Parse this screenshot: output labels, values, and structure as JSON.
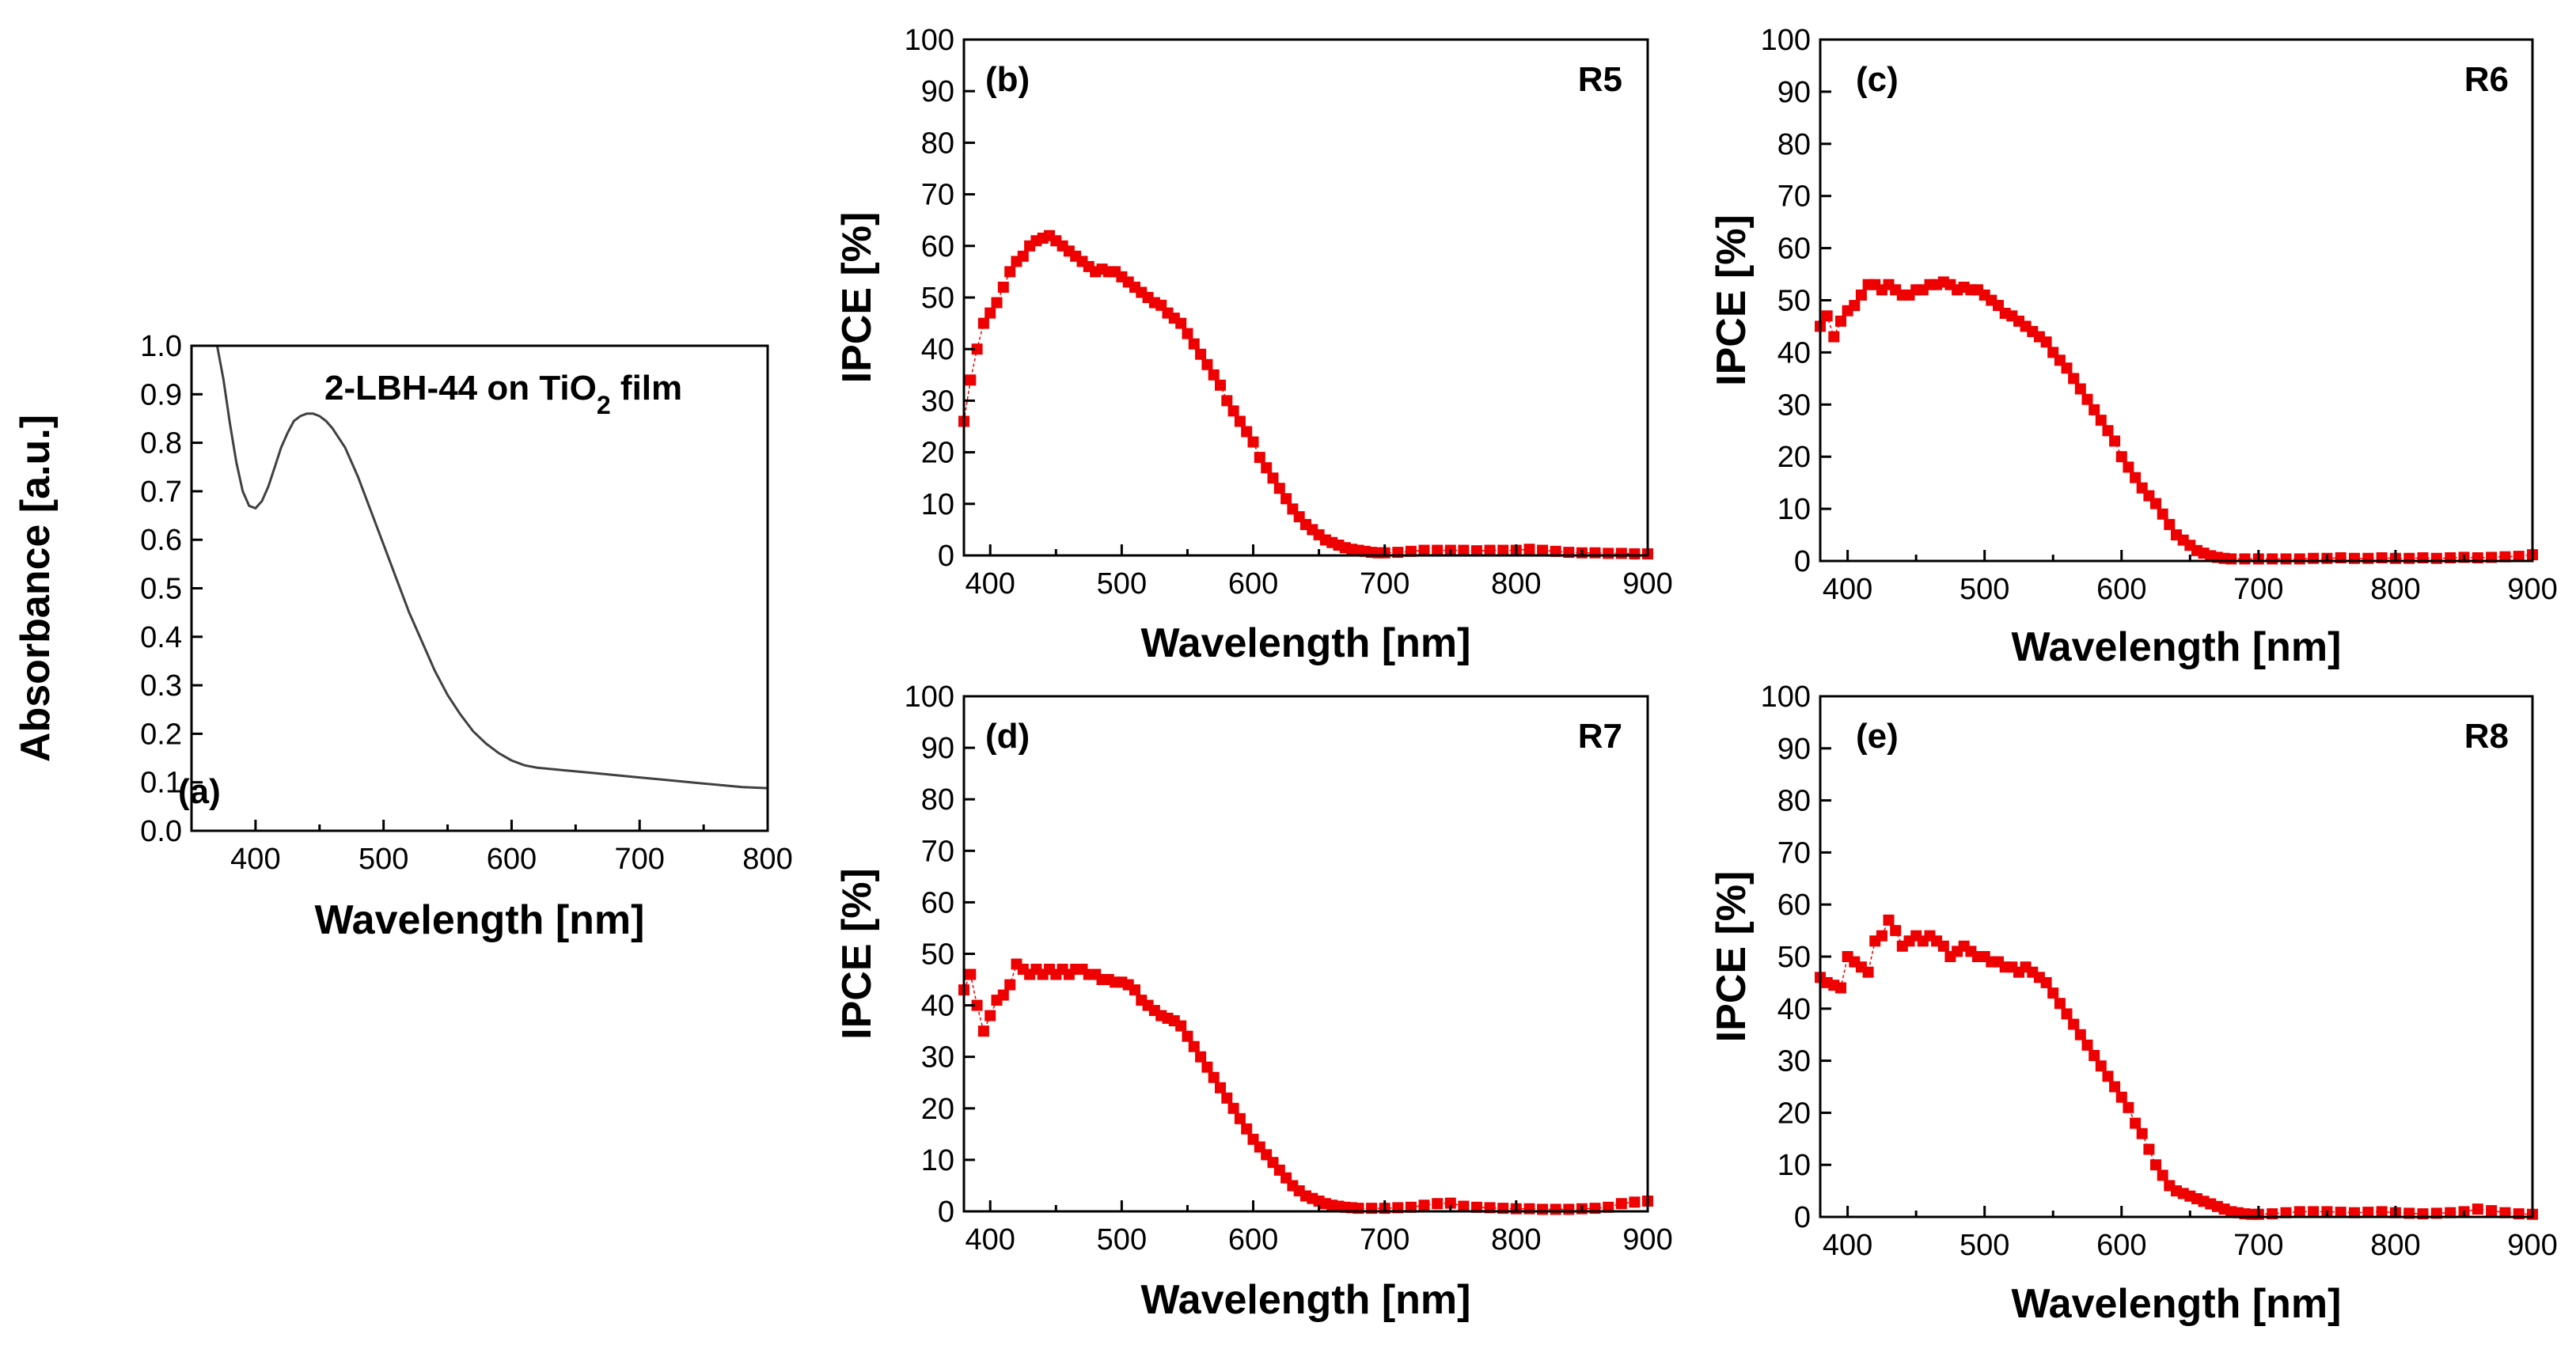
{
  "chart_data": [
    {
      "id": "a",
      "type": "line",
      "panel_label": "(a)",
      "annotation": {
        "prefix": "2-LBH-44 on TiO",
        "subscript": "2",
        "suffix": " film"
      },
      "xlabel": "Wavelength [nm]",
      "ylabel": "Absorbance [a.u.]",
      "xlim": [
        350,
        800
      ],
      "ylim": [
        0,
        1.0
      ],
      "xticks": [
        400,
        500,
        600,
        700,
        800
      ],
      "yticks": [
        0.0,
        0.1,
        0.2,
        0.3,
        0.4,
        0.5,
        0.6,
        0.7,
        0.8,
        0.9,
        1.0
      ],
      "ytick_labels": [
        "0.0",
        "0.1",
        "0.2",
        "0.3",
        "0.4",
        "0.5",
        "0.6",
        "0.7",
        "0.8",
        "0.9",
        "1.0"
      ],
      "color": "#404040",
      "series": [
        {
          "name": "2-LBH-44 on TiO2 film",
          "x": [
            370,
            375,
            380,
            385,
            390,
            395,
            400,
            405,
            410,
            415,
            420,
            425,
            430,
            435,
            440,
            445,
            450,
            455,
            460,
            470,
            480,
            490,
            500,
            510,
            520,
            530,
            540,
            550,
            560,
            570,
            580,
            590,
            600,
            610,
            620,
            640,
            660,
            680,
            700,
            720,
            740,
            760,
            780,
            800
          ],
          "y": [
            1.0,
            0.93,
            0.84,
            0.76,
            0.7,
            0.67,
            0.665,
            0.68,
            0.71,
            0.75,
            0.79,
            0.82,
            0.845,
            0.855,
            0.86,
            0.86,
            0.855,
            0.845,
            0.83,
            0.79,
            0.73,
            0.66,
            0.59,
            0.52,
            0.45,
            0.39,
            0.33,
            0.28,
            0.24,
            0.205,
            0.18,
            0.16,
            0.145,
            0.135,
            0.13,
            0.125,
            0.12,
            0.115,
            0.11,
            0.105,
            0.1,
            0.095,
            0.09,
            0.088
          ]
        }
      ]
    },
    {
      "id": "b",
      "type": "scatter",
      "panel_label": "(b)",
      "name_label": "R5",
      "xlabel": "Wavelength [nm]",
      "ylabel": "IPCE [%]",
      "xlim": [
        380,
        900
      ],
      "ylim": [
        0,
        100
      ],
      "xticks": [
        400,
        500,
        600,
        700,
        800,
        900
      ],
      "yticks": [
        0,
        10,
        20,
        30,
        40,
        50,
        60,
        70,
        80,
        90,
        100
      ],
      "color": "#ee0000",
      "series": [
        {
          "name": "R5",
          "x": [
            380,
            385,
            390,
            395,
            400,
            405,
            410,
            415,
            420,
            425,
            430,
            435,
            440,
            445,
            450,
            455,
            460,
            465,
            470,
            475,
            480,
            485,
            490,
            495,
            500,
            505,
            510,
            515,
            520,
            525,
            530,
            535,
            540,
            545,
            550,
            555,
            560,
            565,
            570,
            575,
            580,
            585,
            590,
            595,
            600,
            605,
            610,
            615,
            620,
            625,
            630,
            635,
            640,
            645,
            650,
            655,
            660,
            665,
            670,
            675,
            680,
            685,
            690,
            695,
            700,
            710,
            720,
            730,
            740,
            750,
            760,
            770,
            780,
            790,
            800,
            810,
            820,
            830,
            840,
            850,
            860,
            870,
            880,
            890,
            900
          ],
          "y": [
            26,
            34,
            40,
            45,
            47,
            49,
            52,
            55,
            57,
            58,
            60,
            61,
            61.5,
            62,
            61,
            60,
            59,
            58,
            57,
            56,
            55,
            55.5,
            55,
            55,
            54,
            53,
            52,
            51,
            50,
            49,
            48.5,
            47,
            46,
            45,
            43,
            41,
            39,
            37,
            35,
            33,
            30,
            28,
            26,
            24,
            22,
            19,
            17,
            15,
            13,
            11,
            9,
            7.5,
            6,
            5,
            4,
            3,
            2.5,
            2,
            1.5,
            1.2,
            1,
            0.8,
            0.6,
            0.5,
            0.5,
            0.6,
            0.8,
            1,
            1,
            1,
            1,
            0.9,
            1,
            1,
            1,
            1.2,
            1,
            0.8,
            0.6,
            0.5,
            0.5,
            0.4,
            0.4,
            0.3,
            0.3
          ]
        }
      ]
    },
    {
      "id": "c",
      "type": "scatter",
      "panel_label": "(c)",
      "name_label": "R6",
      "xlabel": "Wavelength [nm]",
      "ylabel": "IPCE [%]",
      "xlim": [
        380,
        900
      ],
      "ylim": [
        0,
        100
      ],
      "xticks": [
        400,
        500,
        600,
        700,
        800,
        900
      ],
      "yticks": [
        0,
        10,
        20,
        30,
        40,
        50,
        60,
        70,
        80,
        90,
        100
      ],
      "color": "#ee0000",
      "series": [
        {
          "name": "R6",
          "x": [
            380,
            385,
            390,
            395,
            400,
            405,
            410,
            415,
            420,
            425,
            430,
            435,
            440,
            445,
            450,
            455,
            460,
            465,
            470,
            475,
            480,
            485,
            490,
            495,
            500,
            505,
            510,
            515,
            520,
            525,
            530,
            535,
            540,
            545,
            550,
            555,
            560,
            565,
            570,
            575,
            580,
            585,
            590,
            595,
            600,
            605,
            610,
            615,
            620,
            625,
            630,
            635,
            640,
            645,
            650,
            655,
            660,
            665,
            670,
            675,
            680,
            690,
            700,
            710,
            720,
            730,
            740,
            750,
            760,
            770,
            780,
            790,
            800,
            810,
            820,
            830,
            840,
            850,
            860,
            870,
            880,
            890,
            900
          ],
          "y": [
            45,
            47,
            43,
            46,
            48,
            49,
            51,
            53,
            53,
            52,
            53,
            52,
            51,
            51,
            52,
            52,
            53,
            53,
            53.5,
            53,
            52,
            52.5,
            52,
            52,
            51,
            50,
            49,
            47.5,
            47,
            46,
            45,
            44,
            43,
            42,
            40,
            38.5,
            37,
            35,
            33,
            31,
            29,
            27,
            25,
            23,
            20,
            18,
            16,
            14,
            12.5,
            11,
            9,
            7,
            5,
            4,
            3,
            2,
            1.5,
            1,
            0.7,
            0.5,
            0.4,
            0.4,
            0.4,
            0.4,
            0.4,
            0.4,
            0.5,
            0.5,
            0.6,
            0.5,
            0.5,
            0.6,
            0.5,
            0.5,
            0.6,
            0.5,
            0.6,
            0.7,
            0.6,
            0.7,
            0.8,
            0.9,
            1.2
          ]
        }
      ]
    },
    {
      "id": "d",
      "type": "scatter",
      "panel_label": "(d)",
      "name_label": "R7",
      "xlabel": "Wavelength [nm]",
      "ylabel": "IPCE [%]",
      "xlim": [
        380,
        900
      ],
      "ylim": [
        0,
        100
      ],
      "xticks": [
        400,
        500,
        600,
        700,
        800,
        900
      ],
      "yticks": [
        0,
        10,
        20,
        30,
        40,
        50,
        60,
        70,
        80,
        90,
        100
      ],
      "color": "#ee0000",
      "series": [
        {
          "name": "R7",
          "x": [
            380,
            385,
            390,
            395,
            400,
            405,
            410,
            415,
            420,
            425,
            430,
            435,
            440,
            445,
            450,
            455,
            460,
            465,
            470,
            475,
            480,
            485,
            490,
            495,
            500,
            505,
            510,
            515,
            520,
            525,
            530,
            535,
            540,
            545,
            550,
            555,
            560,
            565,
            570,
            575,
            580,
            585,
            590,
            595,
            600,
            605,
            610,
            615,
            620,
            625,
            630,
            635,
            640,
            645,
            650,
            655,
            660,
            665,
            670,
            675,
            680,
            690,
            700,
            710,
            720,
            730,
            740,
            750,
            760,
            770,
            780,
            790,
            800,
            810,
            820,
            830,
            840,
            850,
            860,
            870,
            880,
            890,
            900
          ],
          "y": [
            43,
            46,
            40,
            35,
            38,
            41,
            42,
            44,
            48,
            47,
            46,
            47,
            46,
            47,
            46,
            47,
            46,
            47,
            47,
            46,
            46,
            45,
            45,
            44.5,
            44.5,
            44,
            43,
            41,
            40,
            39,
            38,
            37.5,
            37,
            36,
            34,
            32,
            30,
            28,
            26,
            24,
            22,
            20,
            18,
            16,
            14,
            12.5,
            11,
            9.5,
            8,
            6.5,
            5,
            4,
            3,
            2.5,
            2,
            1.5,
            1.2,
            1,
            0.8,
            0.7,
            0.6,
            0.6,
            0.6,
            0.7,
            0.8,
            1.2,
            1.5,
            1.6,
            1,
            0.8,
            0.7,
            0.6,
            0.5,
            0.5,
            0.4,
            0.4,
            0.4,
            0.5,
            0.6,
            0.8,
            1.5,
            1.8,
            2
          ]
        }
      ]
    },
    {
      "id": "e",
      "type": "scatter",
      "panel_label": "(e)",
      "name_label": "R8",
      "xlabel": "Wavelength [nm]",
      "ylabel": "IPCE [%]",
      "xlim": [
        380,
        900
      ],
      "ylim": [
        0,
        100
      ],
      "xticks": [
        400,
        500,
        600,
        700,
        800,
        900
      ],
      "yticks": [
        0,
        10,
        20,
        30,
        40,
        50,
        60,
        70,
        80,
        90,
        100
      ],
      "color": "#ee0000",
      "series": [
        {
          "name": "R8",
          "x": [
            380,
            385,
            390,
            395,
            400,
            405,
            410,
            415,
            420,
            425,
            430,
            435,
            440,
            445,
            450,
            455,
            460,
            465,
            470,
            475,
            480,
            485,
            490,
            495,
            500,
            505,
            510,
            515,
            520,
            525,
            530,
            535,
            540,
            545,
            550,
            555,
            560,
            565,
            570,
            575,
            580,
            585,
            590,
            595,
            600,
            605,
            610,
            615,
            620,
            625,
            630,
            635,
            640,
            645,
            650,
            655,
            660,
            665,
            670,
            675,
            680,
            685,
            690,
            695,
            700,
            710,
            720,
            730,
            740,
            750,
            760,
            770,
            780,
            790,
            800,
            810,
            820,
            830,
            840,
            850,
            860,
            870,
            880,
            890,
            900
          ],
          "y": [
            46,
            45,
            44.5,
            44,
            50,
            49,
            48,
            47,
            53,
            54,
            57,
            55,
            52,
            53,
            54,
            53,
            54,
            53,
            52,
            50,
            51,
            52,
            51,
            50,
            50,
            49,
            49,
            48,
            48,
            47,
            48,
            47,
            46,
            45,
            43,
            41,
            39,
            37,
            35,
            33,
            31,
            29,
            27,
            25,
            23,
            21,
            18,
            16,
            13,
            10,
            8,
            6,
            5,
            4.5,
            4,
            3.5,
            3,
            2.5,
            2,
            1.5,
            1,
            0.8,
            0.6,
            0.5,
            0.5,
            0.6,
            0.8,
            1,
            1,
            1,
            0.9,
            0.8,
            0.9,
            1,
            0.8,
            0.7,
            0.6,
            0.7,
            0.8,
            1,
            1.5,
            1.2,
            0.8,
            0.6,
            0.5
          ]
        }
      ]
    }
  ]
}
